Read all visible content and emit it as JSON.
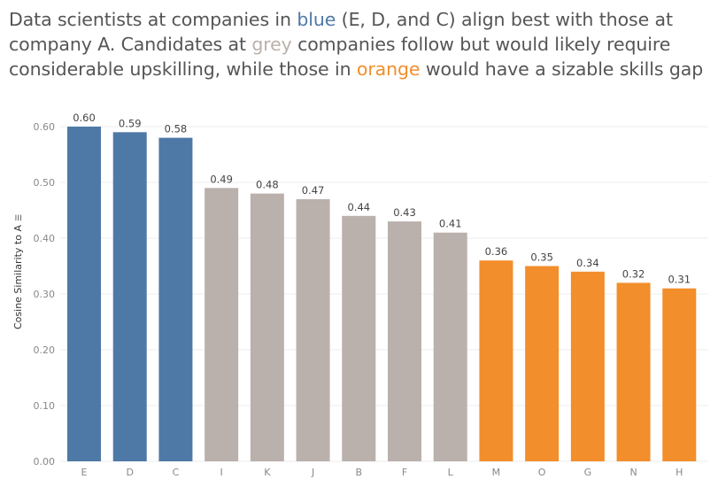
{
  "title": {
    "part1": "Data scientists at companies in ",
    "blue_word": "blue",
    "part2": " (E, D, and C) align best with those at company A. Candidates at ",
    "grey_word": "grey",
    "part3": " companies follow but would likely require considerable upskilling, while those in ",
    "orange_word": "orange",
    "part4": " would have a sizable skills gap"
  },
  "colors": {
    "blue": "#4e79a7",
    "grey": "#bab0ac",
    "orange": "#f28e2b",
    "gridline": "#ececec",
    "tick_text": "#888888",
    "label_text": "#444444"
  },
  "sort_icon": "sort-descending-icon",
  "chart_data": {
    "type": "bar",
    "title": "Data scientists at companies in blue (E, D, and C) align best with those at company A. Candidates at grey companies follow but would likely require considerable upskilling, while those in orange would have a sizable skills gap",
    "xlabel": "",
    "ylabel": "Cosine Similarity to A",
    "ylim": [
      0,
      0.6
    ],
    "yticks": [
      "0.00",
      "0.10",
      "0.20",
      "0.30",
      "0.40",
      "0.50",
      "0.60"
    ],
    "categories": [
      "E",
      "D",
      "C",
      "I",
      "K",
      "J",
      "B",
      "F",
      "L",
      "M",
      "O",
      "G",
      "N",
      "H"
    ],
    "values": [
      0.6,
      0.59,
      0.58,
      0.49,
      0.48,
      0.47,
      0.44,
      0.43,
      0.41,
      0.36,
      0.35,
      0.34,
      0.32,
      0.31
    ],
    "labels": [
      "0.60",
      "0.59",
      "0.58",
      "0.49",
      "0.48",
      "0.47",
      "0.44",
      "0.43",
      "0.41",
      "0.36",
      "0.35",
      "0.34",
      "0.32",
      "0.31"
    ],
    "groups": [
      "blue",
      "blue",
      "blue",
      "grey",
      "grey",
      "grey",
      "grey",
      "grey",
      "grey",
      "orange",
      "orange",
      "orange",
      "orange",
      "orange"
    ],
    "grid": true
  }
}
